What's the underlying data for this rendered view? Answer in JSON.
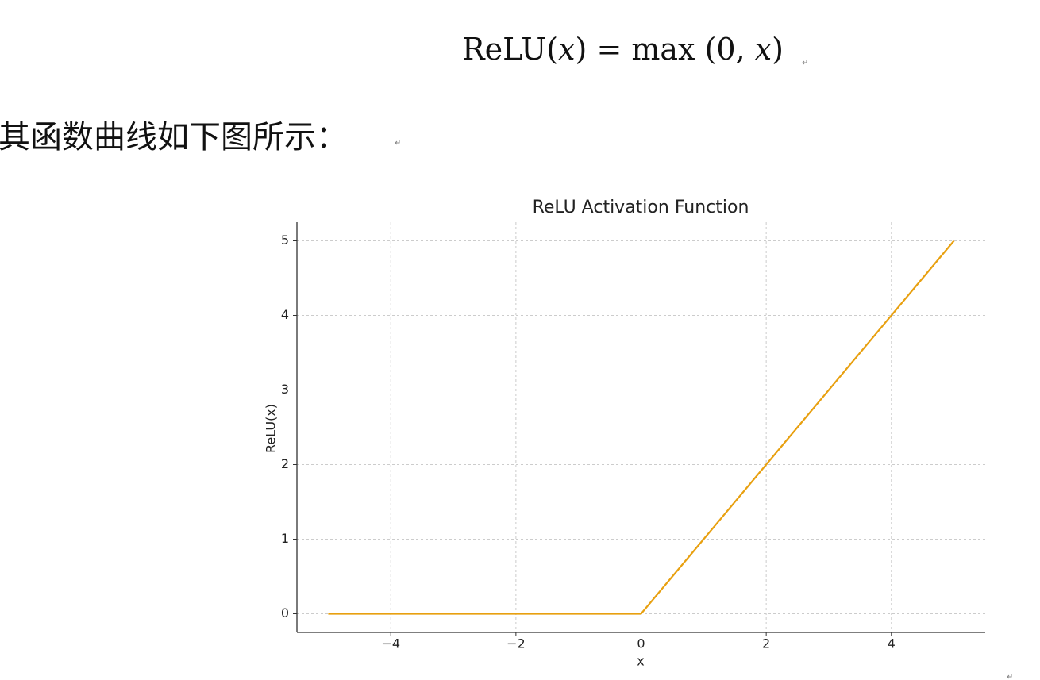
{
  "formula": [
    "ReLU(",
    "x",
    ") = max (0, ",
    "x",
    ")"
  ],
  "caption": "其函数曲线如下图所示：",
  "chart_data": {
    "type": "line",
    "title": "ReLU Activation Function",
    "x_label": "x",
    "y_label": "ReLU(x)",
    "x": [
      -5,
      0,
      5
    ],
    "values": [
      0,
      0,
      5
    ],
    "color": "#e8a010",
    "xlim": [
      -5.5,
      5.5
    ],
    "ylim": [
      -0.25,
      5.25
    ],
    "xticks": [
      {
        "value": -4,
        "label": "−4"
      },
      {
        "value": -2,
        "label": "−2"
      },
      0,
      2,
      4
    ],
    "yticks": [
      0,
      1,
      2,
      3,
      4,
      5
    ],
    "grid": true
  }
}
